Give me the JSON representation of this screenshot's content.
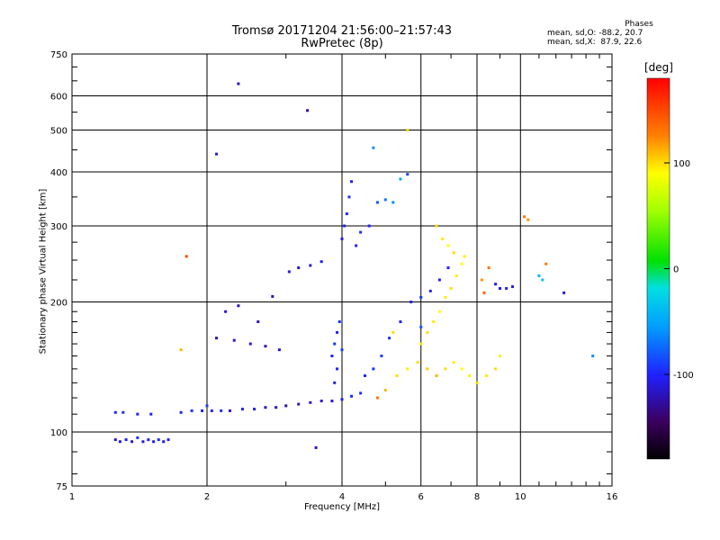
{
  "header": {
    "title_line1": "Tromsø 20171204 21:56:00–21:57:43",
    "title_line2": "RwPretec (8p)"
  },
  "phases": {
    "heading": "Phases",
    "row_o": "mean, sd,O: -88.2, 20.7",
    "row_x": "mean, sd,X:  87.9, 22.6"
  },
  "colorbar": {
    "unit": "[deg]",
    "range": [
      -180,
      180
    ],
    "ticks": [
      {
        "value": 100,
        "label": "100"
      },
      {
        "value": 0,
        "label": "0"
      },
      {
        "value": -100,
        "label": "-100"
      }
    ]
  },
  "chart_data": {
    "type": "scatter",
    "title": "Tromsø 20171204 21:56:00–21:57:43",
    "subtitle": "RwPretec (8p)",
    "xlabel": "Frequency [MHz]",
    "ylabel": "Stationary phase Virtual Height [km]",
    "x_scale": "log",
    "y_scale": "log",
    "xlim": [
      1,
      16
    ],
    "ylim": [
      75,
      750
    ],
    "x_ticks": [
      {
        "value": 1,
        "label": "1"
      },
      {
        "value": 2,
        "label": "2"
      },
      {
        "value": 4,
        "label": "4"
      },
      {
        "value": 6,
        "label": "6"
      },
      {
        "value": 8,
        "label": "8"
      },
      {
        "value": 10,
        "label": "10"
      },
      {
        "value": 16,
        "label": "16"
      }
    ],
    "y_ticks": [
      {
        "value": 75,
        "label": "75"
      },
      {
        "value": 100,
        "label": "100"
      },
      {
        "value": 200,
        "label": "200"
      },
      {
        "value": 300,
        "label": "300"
      },
      {
        "value": 400,
        "label": "400"
      },
      {
        "value": 500,
        "label": "500"
      },
      {
        "value": 600,
        "label": "600"
      },
      {
        "value": 750,
        "label": "750"
      }
    ],
    "grid": true,
    "color_variable": "phase [deg]",
    "points": [
      {
        "x": 1.25,
        "y": 96,
        "phase": -110
      },
      {
        "x": 1.28,
        "y": 95,
        "phase": -105
      },
      {
        "x": 1.32,
        "y": 96,
        "phase": -100
      },
      {
        "x": 1.36,
        "y": 95,
        "phase": -112
      },
      {
        "x": 1.4,
        "y": 97,
        "phase": -95
      },
      {
        "x": 1.44,
        "y": 95,
        "phase": -108
      },
      {
        "x": 1.48,
        "y": 96,
        "phase": -100
      },
      {
        "x": 1.52,
        "y": 95,
        "phase": -104
      },
      {
        "x": 1.56,
        "y": 96,
        "phase": -98
      },
      {
        "x": 1.6,
        "y": 95,
        "phase": -110
      },
      {
        "x": 1.64,
        "y": 96,
        "phase": -102
      },
      {
        "x": 1.25,
        "y": 111,
        "phase": -100
      },
      {
        "x": 1.3,
        "y": 111,
        "phase": -95
      },
      {
        "x": 1.4,
        "y": 110,
        "phase": -105
      },
      {
        "x": 1.5,
        "y": 110,
        "phase": -100
      },
      {
        "x": 1.75,
        "y": 111,
        "phase": -100
      },
      {
        "x": 1.85,
        "y": 112,
        "phase": -95
      },
      {
        "x": 1.95,
        "y": 112,
        "phase": -105
      },
      {
        "x": 2.05,
        "y": 112,
        "phase": -100
      },
      {
        "x": 2.15,
        "y": 112,
        "phase": -95
      },
      {
        "x": 2.25,
        "y": 112,
        "phase": -110
      },
      {
        "x": 2.4,
        "y": 113,
        "phase": -100
      },
      {
        "x": 2.55,
        "y": 113,
        "phase": -105
      },
      {
        "x": 2.7,
        "y": 114,
        "phase": -115
      },
      {
        "x": 2.85,
        "y": 114,
        "phase": -120
      },
      {
        "x": 3.0,
        "y": 115,
        "phase": -125
      },
      {
        "x": 3.2,
        "y": 116,
        "phase": -118
      },
      {
        "x": 3.4,
        "y": 117,
        "phase": -115
      },
      {
        "x": 3.6,
        "y": 118,
        "phase": -112
      },
      {
        "x": 3.8,
        "y": 118,
        "phase": -110
      },
      {
        "x": 4.0,
        "y": 119,
        "phase": -105
      },
      {
        "x": 4.2,
        "y": 121,
        "phase": -100
      },
      {
        "x": 4.4,
        "y": 123,
        "phase": -95
      },
      {
        "x": 2.1,
        "y": 165,
        "phase": -120
      },
      {
        "x": 2.3,
        "y": 163,
        "phase": -115
      },
      {
        "x": 2.5,
        "y": 160,
        "phase": -110
      },
      {
        "x": 2.7,
        "y": 158,
        "phase": -120
      },
      {
        "x": 2.9,
        "y": 155,
        "phase": -115
      },
      {
        "x": 2.2,
        "y": 190,
        "phase": -110
      },
      {
        "x": 2.35,
        "y": 196,
        "phase": -120
      },
      {
        "x": 2.6,
        "y": 180,
        "phase": -115
      },
      {
        "x": 2.8,
        "y": 206,
        "phase": -125
      },
      {
        "x": 3.05,
        "y": 235,
        "phase": -110
      },
      {
        "x": 3.2,
        "y": 240,
        "phase": -115
      },
      {
        "x": 3.4,
        "y": 243,
        "phase": -110
      },
      {
        "x": 3.6,
        "y": 248,
        "phase": -105
      },
      {
        "x": 3.8,
        "y": 150,
        "phase": -100
      },
      {
        "x": 3.85,
        "y": 160,
        "phase": -95
      },
      {
        "x": 3.9,
        "y": 170,
        "phase": -100
      },
      {
        "x": 3.95,
        "y": 180,
        "phase": -95
      },
      {
        "x": 3.9,
        "y": 140,
        "phase": -100
      },
      {
        "x": 3.85,
        "y": 130,
        "phase": -105
      },
      {
        "x": 4.0,
        "y": 155,
        "phase": -90
      },
      {
        "x": 4.0,
        "y": 280,
        "phase": -110
      },
      {
        "x": 4.05,
        "y": 300,
        "phase": -105
      },
      {
        "x": 4.1,
        "y": 320,
        "phase": -100
      },
      {
        "x": 4.15,
        "y": 350,
        "phase": -95
      },
      {
        "x": 4.2,
        "y": 380,
        "phase": -105
      },
      {
        "x": 4.3,
        "y": 270,
        "phase": -100
      },
      {
        "x": 4.4,
        "y": 290,
        "phase": -95
      },
      {
        "x": 4.6,
        "y": 300,
        "phase": -100
      },
      {
        "x": 4.8,
        "y": 340,
        "phase": -80
      },
      {
        "x": 5.0,
        "y": 345,
        "phase": -70
      },
      {
        "x": 5.2,
        "y": 340,
        "phase": -60
      },
      {
        "x": 5.4,
        "y": 385,
        "phase": -50
      },
      {
        "x": 5.6,
        "y": 395,
        "phase": -90
      },
      {
        "x": 4.5,
        "y": 135,
        "phase": -100
      },
      {
        "x": 4.7,
        "y": 140,
        "phase": -95
      },
      {
        "x": 4.9,
        "y": 150,
        "phase": -90
      },
      {
        "x": 5.1,
        "y": 165,
        "phase": -95
      },
      {
        "x": 5.4,
        "y": 180,
        "phase": -100
      },
      {
        "x": 5.7,
        "y": 200,
        "phase": -100
      },
      {
        "x": 6.0,
        "y": 205,
        "phase": -95
      },
      {
        "x": 6.3,
        "y": 212,
        "phase": -100
      },
      {
        "x": 6.6,
        "y": 225,
        "phase": -105
      },
      {
        "x": 6.9,
        "y": 240,
        "phase": -100
      },
      {
        "x": 4.8,
        "y": 120,
        "phase": 130
      },
      {
        "x": 5.0,
        "y": 125,
        "phase": 110
      },
      {
        "x": 5.3,
        "y": 135,
        "phase": 100
      },
      {
        "x": 5.6,
        "y": 140,
        "phase": 95
      },
      {
        "x": 5.9,
        "y": 145,
        "phase": 100
      },
      {
        "x": 6.2,
        "y": 140,
        "phase": 105
      },
      {
        "x": 6.5,
        "y": 135,
        "phase": 110
      },
      {
        "x": 6.8,
        "y": 140,
        "phase": 100
      },
      {
        "x": 7.1,
        "y": 145,
        "phase": 95
      },
      {
        "x": 7.4,
        "y": 140,
        "phase": 90
      },
      {
        "x": 7.7,
        "y": 135,
        "phase": 95
      },
      {
        "x": 8.0,
        "y": 130,
        "phase": 100
      },
      {
        "x": 8.4,
        "y": 135,
        "phase": 95
      },
      {
        "x": 8.8,
        "y": 140,
        "phase": 100
      },
      {
        "x": 9.0,
        "y": 150,
        "phase": 95
      },
      {
        "x": 6.0,
        "y": 160,
        "phase": 95
      },
      {
        "x": 6.2,
        "y": 170,
        "phase": 100
      },
      {
        "x": 6.4,
        "y": 180,
        "phase": 95
      },
      {
        "x": 6.6,
        "y": 190,
        "phase": 90
      },
      {
        "x": 6.8,
        "y": 205,
        "phase": 95
      },
      {
        "x": 7.0,
        "y": 215,
        "phase": 100
      },
      {
        "x": 7.2,
        "y": 230,
        "phase": 95
      },
      {
        "x": 7.4,
        "y": 245,
        "phase": 90
      },
      {
        "x": 7.5,
        "y": 255,
        "phase": 95
      },
      {
        "x": 6.5,
        "y": 300,
        "phase": 100
      },
      {
        "x": 6.7,
        "y": 280,
        "phase": 95
      },
      {
        "x": 6.9,
        "y": 270,
        "phase": 90
      },
      {
        "x": 7.1,
        "y": 260,
        "phase": 100
      },
      {
        "x": 8.8,
        "y": 220,
        "phase": -110
      },
      {
        "x": 9.0,
        "y": 215,
        "phase": -105
      },
      {
        "x": 9.3,
        "y": 215,
        "phase": -100
      },
      {
        "x": 9.6,
        "y": 217,
        "phase": -110
      },
      {
        "x": 8.2,
        "y": 225,
        "phase": 120
      },
      {
        "x": 8.5,
        "y": 240,
        "phase": 130
      },
      {
        "x": 8.3,
        "y": 210,
        "phase": 140
      },
      {
        "x": 11.0,
        "y": 230,
        "phase": -40
      },
      {
        "x": 11.2,
        "y": 225,
        "phase": -30
      },
      {
        "x": 11.4,
        "y": 245,
        "phase": 130
      },
      {
        "x": 10.2,
        "y": 315,
        "phase": 130
      },
      {
        "x": 10.4,
        "y": 310,
        "phase": 120
      },
      {
        "x": 12.5,
        "y": 210,
        "phase": -110
      },
      {
        "x": 14.5,
        "y": 150,
        "phase": -60
      },
      {
        "x": 2.35,
        "y": 640,
        "phase": -120
      },
      {
        "x": 3.35,
        "y": 555,
        "phase": -130
      },
      {
        "x": 2.1,
        "y": 440,
        "phase": -110
      },
      {
        "x": 1.8,
        "y": 255,
        "phase": 150
      },
      {
        "x": 1.75,
        "y": 155,
        "phase": 110
      },
      {
        "x": 2.0,
        "y": 115,
        "phase": -90
      },
      {
        "x": 3.5,
        "y": 92,
        "phase": -120
      },
      {
        "x": 5.6,
        "y": 500,
        "phase": 100
      },
      {
        "x": 6.0,
        "y": 175,
        "phase": -80
      },
      {
        "x": 4.7,
        "y": 455,
        "phase": -60
      },
      {
        "x": 5.2,
        "y": 170,
        "phase": 100
      }
    ]
  }
}
